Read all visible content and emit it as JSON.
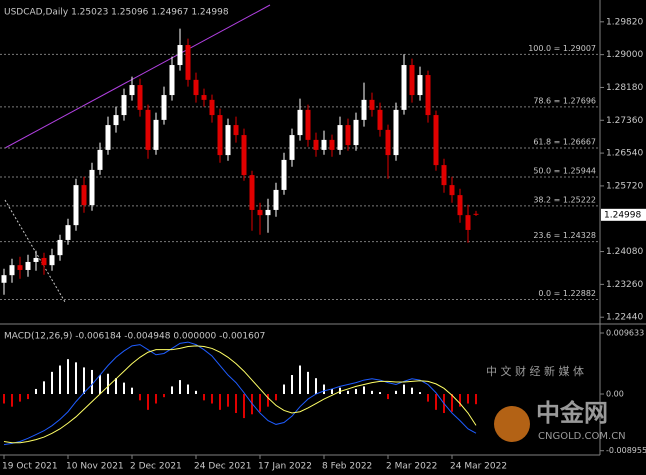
{
  "chart_data": [
    {
      "type": "candlestick",
      "title": "USDCAD,Daily  1.25023 1.25096 1.24967 1.24998",
      "categories": [
        "19 Oct 2021",
        null,
        null,
        null,
        null,
        null,
        null,
        null,
        "10 Nov 2021",
        null,
        null,
        null,
        null,
        null,
        null,
        null,
        "2 Dec 2021",
        null,
        null,
        null,
        null,
        null,
        null,
        null,
        "24 Dec 2021",
        null,
        null,
        null,
        null,
        null,
        null,
        null,
        "17 Jan 2022",
        null,
        null,
        null,
        null,
        null,
        null,
        null,
        "8 Feb 2022",
        null,
        null,
        null,
        null,
        null,
        null,
        null,
        "2 Mar 2022",
        null,
        null,
        null,
        null,
        null,
        null,
        null,
        "24 Mar 2022",
        null,
        null,
        null
      ],
      "open": [
        1.233,
        1.2349,
        1.2374,
        1.2362,
        1.2382,
        1.2392,
        1.2374,
        1.2399,
        1.2437,
        1.2474,
        1.2574,
        1.2524,
        1.2612,
        1.2662,
        1.2724,
        1.2749,
        1.2799,
        1.2824,
        1.2762,
        1.2662,
        1.2737,
        1.2799,
        1.2874,
        1.2924,
        1.2837,
        1.2799,
        1.2787,
        1.2749,
        1.2649,
        1.2724,
        1.2699,
        1.2599,
        1.2512,
        1.2499,
        1.2512,
        1.2562,
        1.2637,
        1.2699,
        1.2762,
        1.2687,
        1.2662,
        1.2687,
        1.2662,
        1.2724,
        1.2674,
        1.2737,
        1.2787,
        1.2762,
        1.2712,
        1.2649,
        1.2762,
        1.2874,
        1.2799,
        1.2849,
        1.2749,
        1.2624,
        1.2574,
        1.2549,
        1.2499,
        1.25023
      ],
      "high": [
        1.2365,
        1.239,
        1.2395,
        1.24,
        1.241,
        1.2405,
        1.2415,
        1.245,
        1.249,
        1.259,
        1.2595,
        1.263,
        1.268,
        1.2745,
        1.277,
        1.2815,
        1.2845,
        1.284,
        1.2775,
        1.2755,
        1.282,
        1.2895,
        1.2965,
        1.294,
        1.2855,
        1.2815,
        1.28,
        1.2765,
        1.274,
        1.2745,
        1.2715,
        1.261,
        1.253,
        1.254,
        1.258,
        1.2655,
        1.2715,
        1.279,
        1.2775,
        1.2705,
        1.271,
        1.27,
        1.2745,
        1.274,
        1.2755,
        1.283,
        1.2805,
        1.278,
        1.2725,
        1.278,
        1.2901,
        1.289,
        1.287,
        1.286,
        1.276,
        1.264,
        1.2595,
        1.2565,
        1.2525,
        1.25096
      ],
      "low": [
        1.23,
        1.233,
        1.234,
        1.2345,
        1.236,
        1.235,
        1.236,
        1.2385,
        1.2425,
        1.246,
        1.2505,
        1.251,
        1.26,
        1.265,
        1.2705,
        1.2735,
        1.2785,
        1.2745,
        1.264,
        1.265,
        1.2725,
        1.2785,
        1.286,
        1.282,
        1.278,
        1.277,
        1.273,
        1.263,
        1.2635,
        1.268,
        1.2585,
        1.246,
        1.245,
        1.2455,
        1.2495,
        1.255,
        1.262,
        1.2685,
        1.267,
        1.2645,
        1.265,
        1.2645,
        1.265,
        1.266,
        1.266,
        1.272,
        1.2745,
        1.2695,
        1.259,
        1.2635,
        1.275,
        1.278,
        1.2785,
        1.273,
        1.261,
        1.2555,
        1.253,
        1.248,
        1.243,
        1.24967
      ],
      "close": [
        1.2349,
        1.2374,
        1.2362,
        1.2382,
        1.2392,
        1.2374,
        1.2399,
        1.2437,
        1.2474,
        1.2574,
        1.2524,
        1.2612,
        1.2662,
        1.2724,
        1.2749,
        1.2799,
        1.2824,
        1.2762,
        1.2662,
        1.2737,
        1.2799,
        1.2874,
        1.2924,
        1.2837,
        1.2799,
        1.2787,
        1.2749,
        1.2649,
        1.2724,
        1.2699,
        1.2599,
        1.2512,
        1.2499,
        1.2512,
        1.2562,
        1.2637,
        1.2699,
        1.2762,
        1.2687,
        1.2662,
        1.2687,
        1.2662,
        1.2724,
        1.2674,
        1.2737,
        1.2787,
        1.2762,
        1.2712,
        1.2649,
        1.2762,
        1.2874,
        1.2799,
        1.2849,
        1.2749,
        1.2624,
        1.2574,
        1.2549,
        1.2499,
        1.2462,
        1.24998
      ],
      "up_color": "#ffffff",
      "down_color": "#e00000",
      "ylim": [
        1.2232,
        1.3024
      ],
      "yticks": [
        {
          "value": 1.2982,
          "label": "1.29820"
        },
        {
          "value": 1.29,
          "label": "1.29000"
        },
        {
          "value": 1.2818,
          "label": "1.28180"
        },
        {
          "value": 1.2736,
          "label": "1.27360"
        },
        {
          "value": 1.2654,
          "label": "1.26540"
        },
        {
          "value": 1.2572,
          "label": "1.25720"
        },
        {
          "value": 1.2408,
          "label": "1.24080"
        },
        {
          "value": 1.2326,
          "label": "1.23260"
        },
        {
          "value": 1.2244,
          "label": "1.22440"
        }
      ],
      "current_price": 1.24998,
      "fib_levels": [
        {
          "price": 1.29007,
          "label": "100.0 = 1.29007"
        },
        {
          "price": 1.27696,
          "label": "78.6 = 1.27696"
        },
        {
          "price": 1.26667,
          "label": "61.8 = 1.26667"
        },
        {
          "price": 1.25944,
          "label": "50.0 = 1.25944"
        },
        {
          "price": 1.25222,
          "label": "38.2 = 1.25222"
        },
        {
          "price": 1.24328,
          "label": "23.6 = 1.24328"
        },
        {
          "price": 1.22882,
          "label": "0.0 = 1.22882"
        }
      ]
    },
    {
      "type": "macd",
      "title": "MACD(12,26,9) -0.006184 -0.004948 0.000000 -0.001607",
      "histogram": [
        -0.0015,
        -0.002,
        -0.0012,
        -0.0008,
        0.0008,
        0.002,
        0.0035,
        0.0045,
        0.0055,
        0.005,
        0.0042,
        0.0038,
        0.003,
        0.0032,
        0.0025,
        0.0018,
        0.001,
        -0.001,
        -0.0025,
        -0.0015,
        -0.0005,
        0.0012,
        0.0022,
        0.0015,
        0.0005,
        -0.001,
        -0.0015,
        -0.0025,
        -0.002,
        -0.003,
        -0.0038,
        -0.0032,
        -0.0028,
        -0.002,
        -0.001,
        0.0015,
        0.003,
        0.0045,
        0.0035,
        0.0025,
        0.0015,
        0.0008,
        0.001,
        0.0005,
        0.0008,
        0.0012,
        0.0005,
        0.0003,
        -0.0008,
        0.0005,
        0.0015,
        0.001,
        0.0003,
        -0.0012,
        -0.0025,
        -0.003,
        -0.0028,
        -0.002,
        -0.0015,
        -0.001607
      ],
      "up_color": "#ffffff",
      "down_color": "#e00000",
      "series": [
        {
          "color": "#1e5cff",
          "values": [
            -0.008,
            -0.0078,
            -0.0075,
            -0.007,
            -0.0064,
            -0.0058,
            -0.005,
            -0.004,
            -0.0028,
            -0.0012,
            0.0002,
            0.0015,
            0.003,
            0.0045,
            0.0058,
            0.0068,
            0.0076,
            0.0078,
            0.007,
            0.0062,
            0.0064,
            0.0072,
            0.008,
            0.0082,
            0.0078,
            0.007,
            0.006,
            0.0045,
            0.003,
            0.0018,
            0.0002,
            -0.0015,
            -0.003,
            -0.0042,
            -0.0048,
            -0.0045,
            -0.0035,
            -0.002,
            -0.0008,
            0.0,
            0.0005,
            0.0008,
            0.0012,
            0.0015,
            0.0018,
            0.0022,
            0.0024,
            0.0022,
            0.0018,
            0.0015,
            0.002,
            0.0024,
            0.0022,
            0.0015,
            0.0002,
            -0.0015,
            -0.003,
            -0.0042,
            -0.0055,
            -0.006184
          ]
        },
        {
          "color": "#ffff66",
          "values": [
            -0.0075,
            -0.0077,
            -0.0077,
            -0.0075,
            -0.0072,
            -0.0068,
            -0.0062,
            -0.0055,
            -0.0046,
            -0.0036,
            -0.0024,
            -0.0012,
            0.0,
            0.0012,
            0.0024,
            0.0036,
            0.0048,
            0.0058,
            0.0066,
            0.007,
            0.007,
            0.007,
            0.0072,
            0.0075,
            0.0076,
            0.0075,
            0.0072,
            0.0066,
            0.0058,
            0.0048,
            0.0036,
            0.0022,
            0.0008,
            -0.0006,
            -0.0018,
            -0.0026,
            -0.003,
            -0.0028,
            -0.0022,
            -0.0015,
            -0.0008,
            -0.0002,
            0.0004,
            0.0008,
            0.0012,
            0.0015,
            0.0018,
            0.002,
            0.002,
            0.0019,
            0.0019,
            0.002,
            0.0021,
            0.002,
            0.0016,
            0.0009,
            -0.0002,
            -0.0015,
            -0.003,
            -0.004948
          ]
        }
      ],
      "ylim": [
        -0.00963,
        0.01074
      ],
      "yticks": [
        0.009633,
        {
          "value": 0,
          "label": "0.00"
        },
        -0.008955
      ]
    }
  ],
  "watermark": {
    "brand": "中金网",
    "site": "CNGOLD.COM.CN",
    "slogan": "中 文 财 经 新 媒 体"
  }
}
